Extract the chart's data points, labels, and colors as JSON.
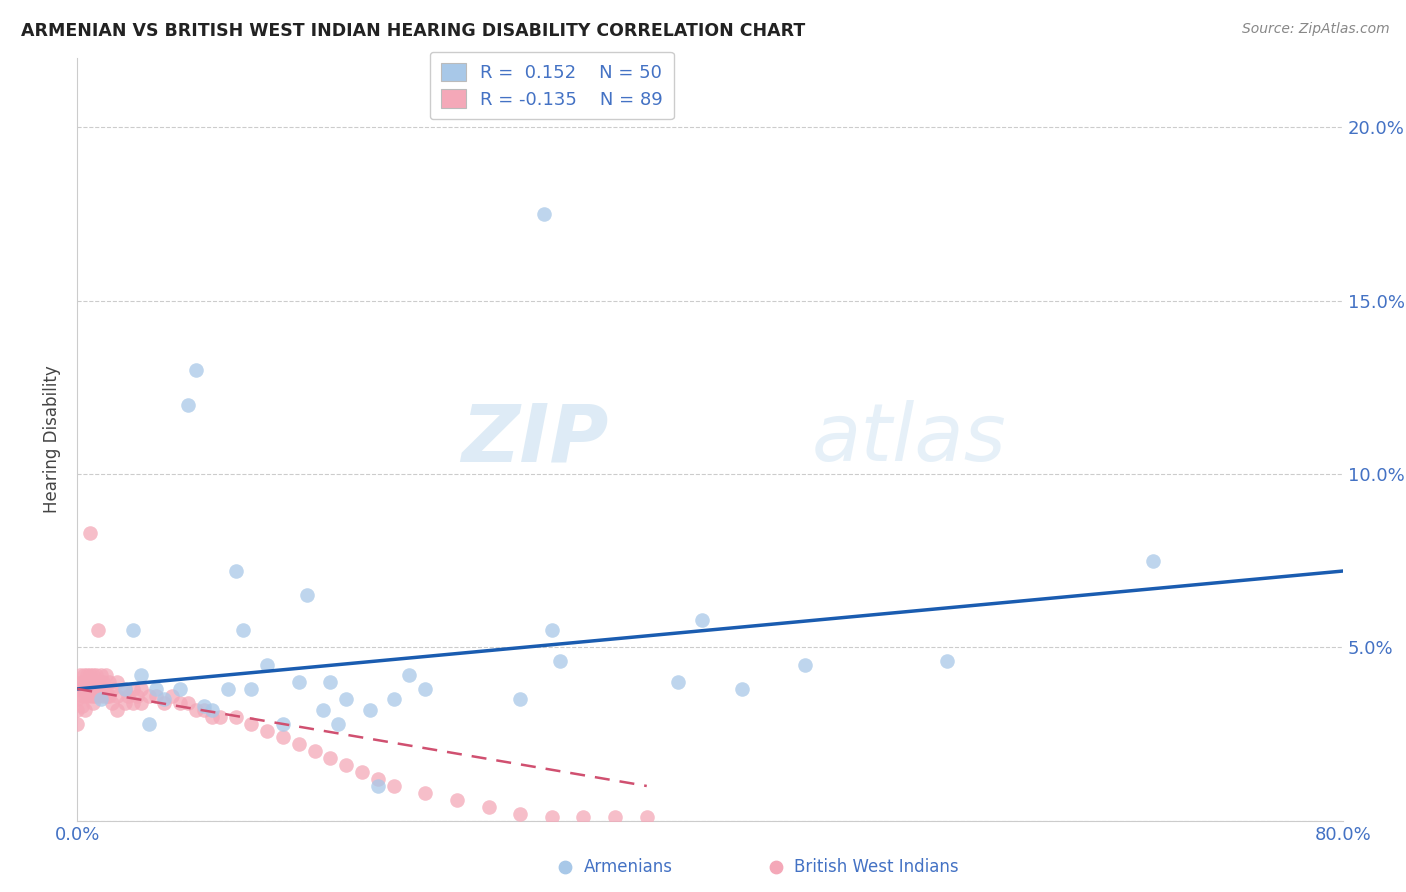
{
  "title": "ARMENIAN VS BRITISH WEST INDIAN HEARING DISABILITY CORRELATION CHART",
  "source": "Source: ZipAtlas.com",
  "ylabel": "Hearing Disability",
  "xlim": [
    0.0,
    0.8
  ],
  "ylim": [
    0.0,
    0.22
  ],
  "xtick_positions": [
    0.0,
    0.1,
    0.2,
    0.3,
    0.4,
    0.5,
    0.6,
    0.7,
    0.8
  ],
  "xtick_labels": [
    "0.0%",
    "",
    "",
    "",
    "",
    "",
    "",
    "",
    "80.0%"
  ],
  "ytick_positions": [
    0.0,
    0.05,
    0.1,
    0.15,
    0.2
  ],
  "ytick_labels_right": [
    "",
    "5.0%",
    "10.0%",
    "15.0%",
    "20.0%"
  ],
  "blue_color": "#a8c8e8",
  "pink_color": "#f4a8b8",
  "trend_blue_color": "#1a5cb0",
  "trend_pink_color": "#d05070",
  "axis_label_color": "#4472c4",
  "legend_R_blue": "0.152",
  "legend_N_blue": "50",
  "legend_R_pink": "-0.135",
  "legend_N_pink": "89",
  "watermark_zip": "ZIP",
  "watermark_atlas": "atlas",
  "blue_x": [
    0.015,
    0.03,
    0.035,
    0.04,
    0.045,
    0.05,
    0.055,
    0.065,
    0.07,
    0.075,
    0.08,
    0.085,
    0.095,
    0.1,
    0.105,
    0.11,
    0.12,
    0.13,
    0.14,
    0.145,
    0.155,
    0.16,
    0.165,
    0.17,
    0.185,
    0.19,
    0.2,
    0.21,
    0.22,
    0.28,
    0.3,
    0.305,
    0.38,
    0.395,
    0.42,
    0.46,
    0.55,
    0.68
  ],
  "blue_y": [
    0.035,
    0.038,
    0.055,
    0.042,
    0.028,
    0.038,
    0.035,
    0.038,
    0.12,
    0.13,
    0.033,
    0.032,
    0.038,
    0.072,
    0.055,
    0.038,
    0.045,
    0.028,
    0.04,
    0.065,
    0.032,
    0.04,
    0.028,
    0.035,
    0.032,
    0.01,
    0.035,
    0.042,
    0.038,
    0.035,
    0.055,
    0.046,
    0.04,
    0.058,
    0.038,
    0.045,
    0.046,
    0.075
  ],
  "blue_outlier_x": [
    0.295
  ],
  "blue_outlier_y": [
    0.175
  ],
  "pink_x": [
    0.0,
    0.0,
    0.0,
    0.0,
    0.002,
    0.002,
    0.003,
    0.003,
    0.003,
    0.004,
    0.004,
    0.005,
    0.005,
    0.005,
    0.006,
    0.006,
    0.007,
    0.007,
    0.008,
    0.008,
    0.009,
    0.009,
    0.01,
    0.01,
    0.01,
    0.011,
    0.011,
    0.012,
    0.012,
    0.013,
    0.013,
    0.014,
    0.015,
    0.015,
    0.016,
    0.016,
    0.017,
    0.018,
    0.018,
    0.019,
    0.02,
    0.02,
    0.022,
    0.022,
    0.025,
    0.025,
    0.025,
    0.03,
    0.03,
    0.032,
    0.035,
    0.035,
    0.038,
    0.04,
    0.04,
    0.045,
    0.05,
    0.055,
    0.06,
    0.065,
    0.07,
    0.075,
    0.08,
    0.085,
    0.09,
    0.1,
    0.11,
    0.12,
    0.13,
    0.14,
    0.15,
    0.16,
    0.17,
    0.18,
    0.19,
    0.2,
    0.22,
    0.24,
    0.26,
    0.28,
    0.3,
    0.32,
    0.34,
    0.36
  ],
  "pink_y": [
    0.038,
    0.035,
    0.032,
    0.028,
    0.042,
    0.038,
    0.04,
    0.036,
    0.033,
    0.042,
    0.038,
    0.04,
    0.036,
    0.032,
    0.042,
    0.038,
    0.04,
    0.036,
    0.042,
    0.038,
    0.04,
    0.036,
    0.042,
    0.038,
    0.034,
    0.04,
    0.036,
    0.042,
    0.038,
    0.04,
    0.036,
    0.038,
    0.042,
    0.038,
    0.04,
    0.036,
    0.038,
    0.042,
    0.038,
    0.036,
    0.04,
    0.036,
    0.038,
    0.034,
    0.04,
    0.036,
    0.032,
    0.038,
    0.034,
    0.036,
    0.038,
    0.034,
    0.036,
    0.038,
    0.034,
    0.036,
    0.036,
    0.034,
    0.036,
    0.034,
    0.034,
    0.032,
    0.032,
    0.03,
    0.03,
    0.03,
    0.028,
    0.026,
    0.024,
    0.022,
    0.02,
    0.018,
    0.016,
    0.014,
    0.012,
    0.01,
    0.008,
    0.006,
    0.004,
    0.002,
    0.001,
    0.001,
    0.001,
    0.001
  ],
  "pink_outlier_x": [
    0.008
  ],
  "pink_outlier_y": [
    0.083
  ],
  "pink_outlier2_x": [
    0.013
  ],
  "pink_outlier2_y": [
    0.055
  ]
}
